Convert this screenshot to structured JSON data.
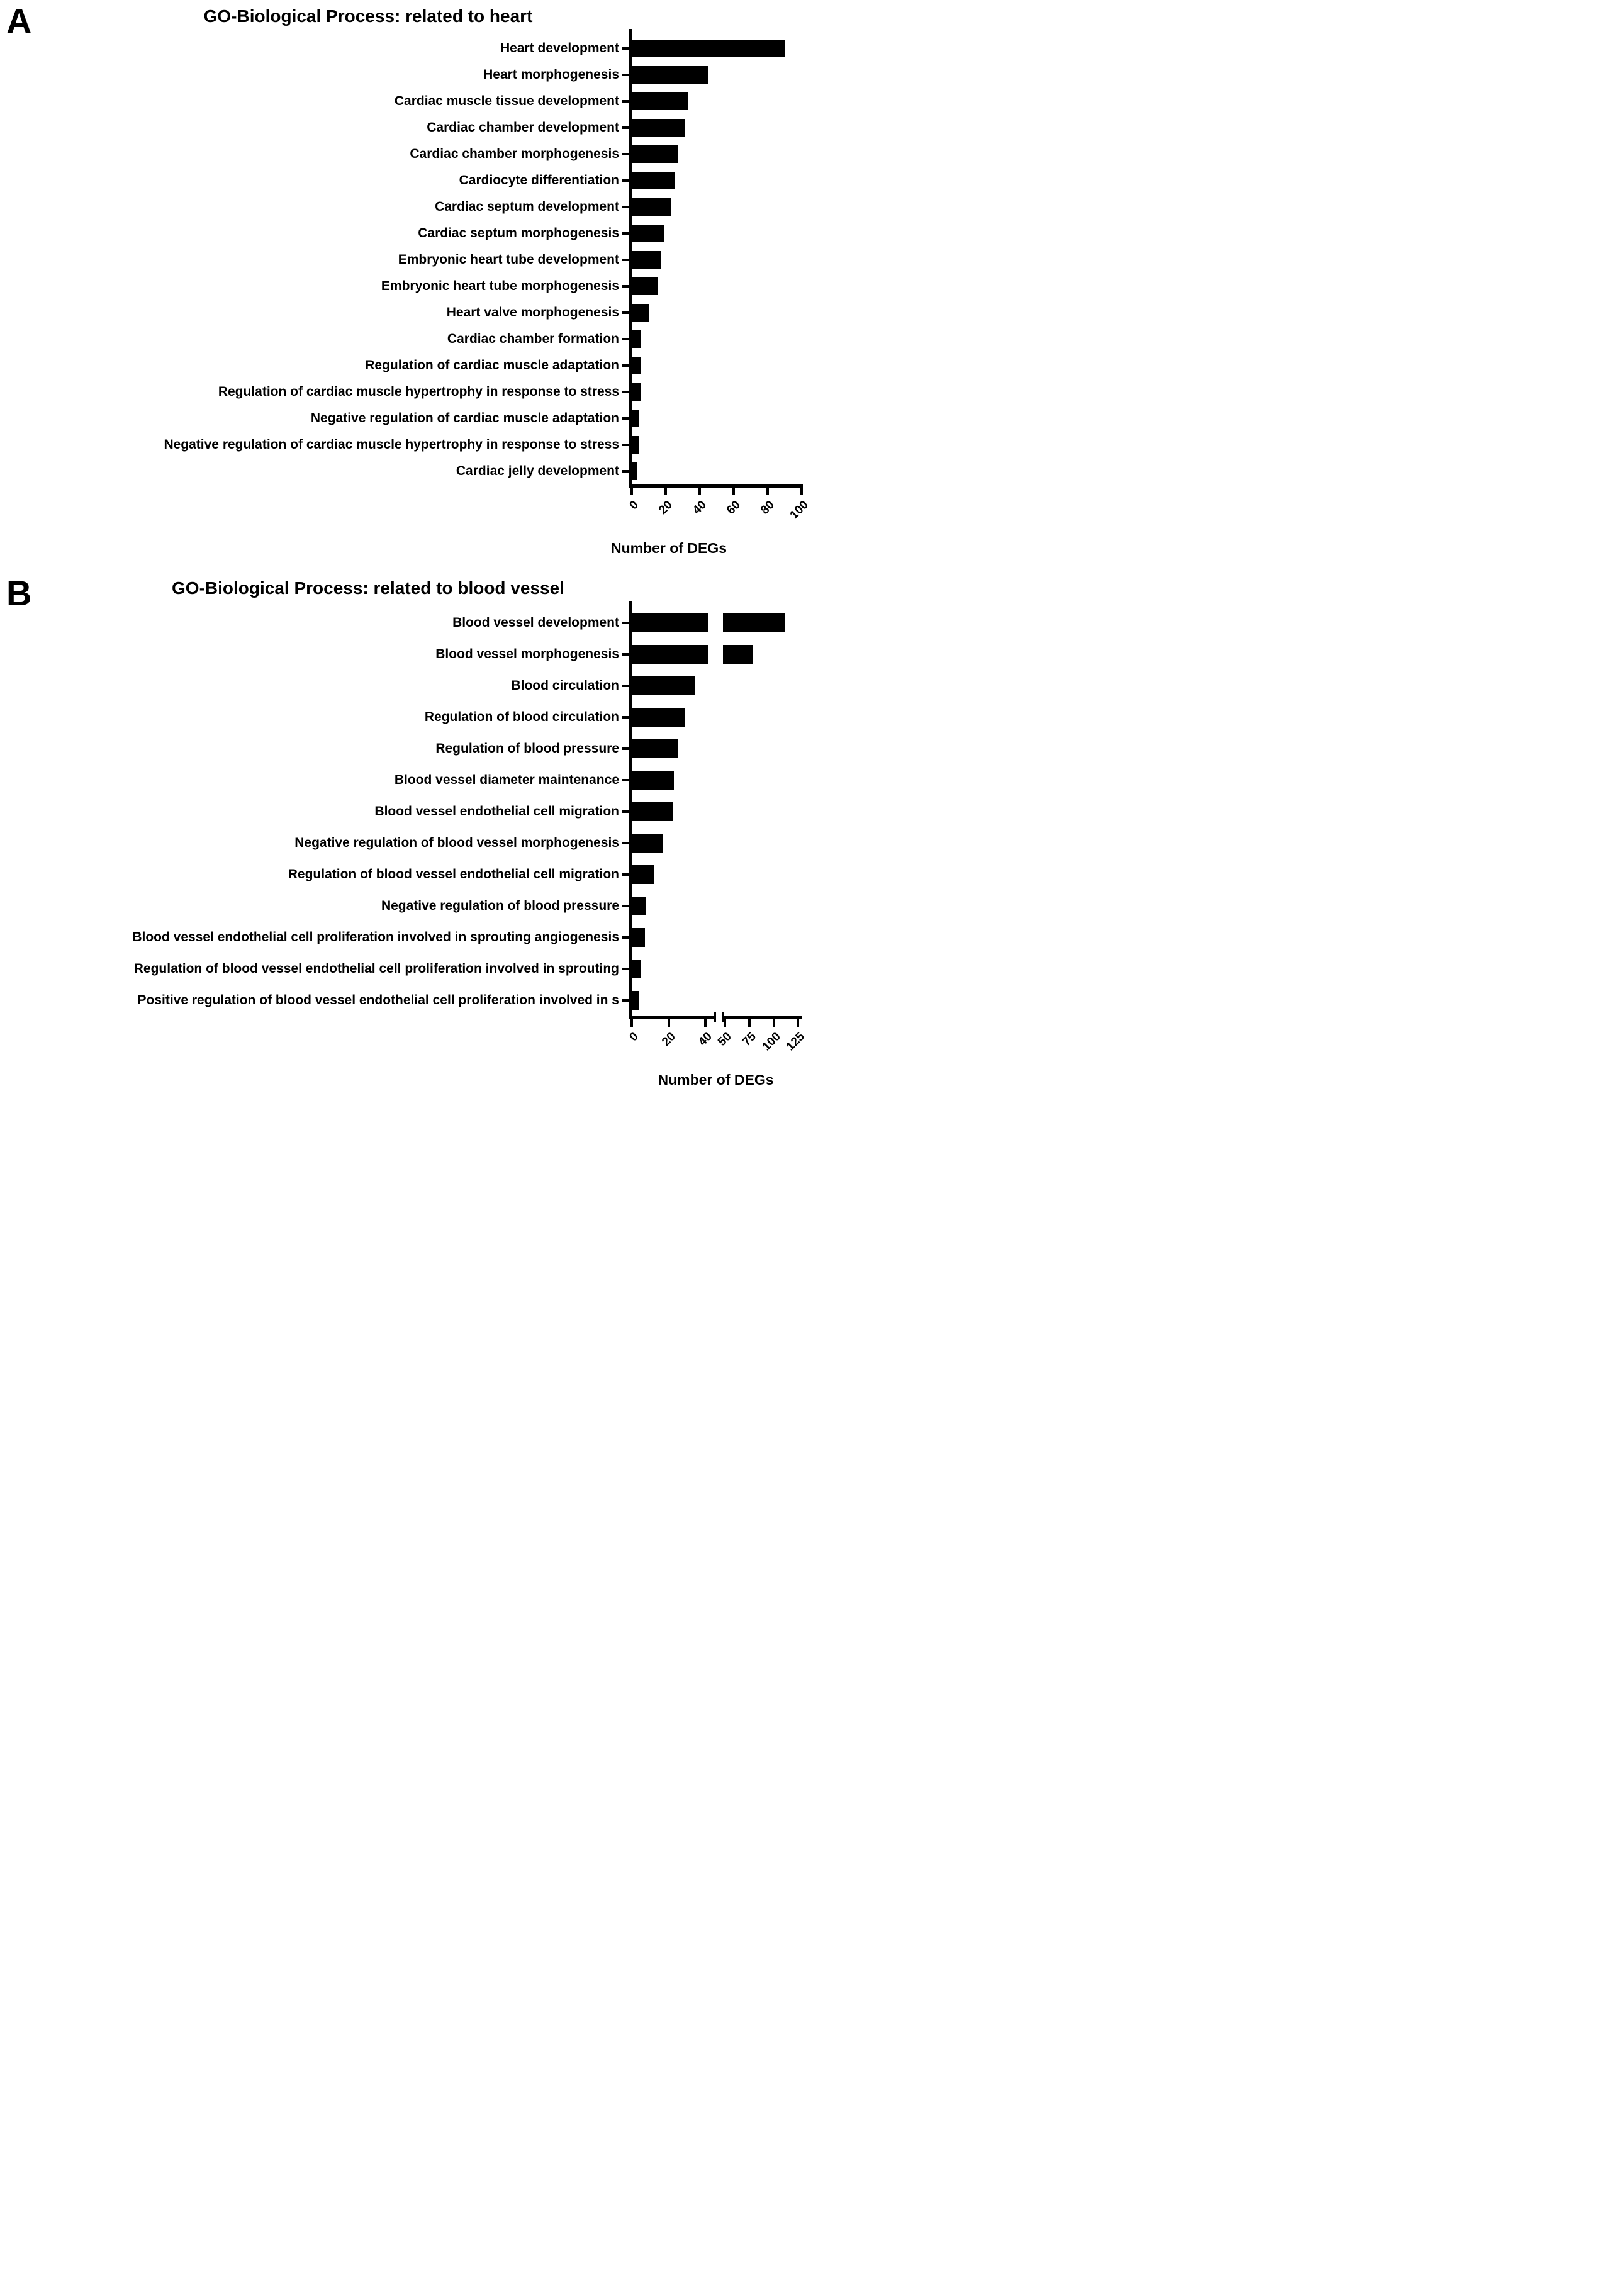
{
  "figure_background": "#ffffff",
  "bar_color": "#000000",
  "chart_data": [
    {
      "type": "bar",
      "horizontal": true,
      "panel_letter": "A",
      "title": "GO-Biological Process: related to heart",
      "xlabel": "Number of DEGs",
      "xlim": [
        0,
        103
      ],
      "x_ticks": [
        0,
        20,
        40,
        60,
        80,
        100
      ],
      "grid": false,
      "legend": false,
      "categories": [
        "Heart development",
        "Heart morphogenesis",
        "Cardiac muscle tissue development",
        "Cardiac chamber development",
        "Cardiac chamber morphogenesis",
        "Cardiocyte differentiation",
        "Cardiac septum development",
        "Cardiac septum morphogenesis",
        "Embryonic heart tube development",
        "Embryonic heart tube morphogenesis",
        "Heart valve morphogenesis",
        "Cardiac chamber formation",
        "Regulation of cardiac muscle adaptation",
        "Regulation of cardiac muscle hypertrophy in response to stress",
        "Negative regulation of cardiac muscle adaptation",
        "Negative regulation of cardiac muscle hypertrophy in response to stress",
        "Cardiac jelly development"
      ],
      "values": [
        90,
        45,
        33,
        31,
        27,
        25,
        23,
        19,
        17,
        15,
        10,
        5,
        5,
        5,
        4,
        4,
        3
      ]
    },
    {
      "type": "bar",
      "horizontal": true,
      "panel_letter": "B",
      "title": "GO-Biological Process: related to blood vessel",
      "xlabel": "Number of DEGs",
      "xlim_segment1": [
        0,
        45
      ],
      "xlim_segment2": [
        50,
        125
      ],
      "axis_break": {
        "after": 40,
        "resume_at": 50
      },
      "x_ticks_segment1": [
        0,
        20,
        40
      ],
      "x_ticks_segment2": [
        50,
        75,
        100,
        125
      ],
      "grid": false,
      "legend": false,
      "categories": [
        "Blood vessel development",
        "Blood vessel morphogenesis",
        "Blood circulation",
        "Regulation of blood circulation",
        "Regulation of blood pressure",
        "Blood vessel diameter maintenance",
        "Blood vessel endothelial cell migration",
        "Negative regulation of blood vessel morphogenesis",
        "Regulation of blood vessel endothelial cell migration",
        "Negative regulation of blood pressure",
        "Blood vessel endothelial cell proliferation involved in sprouting angiogenesis",
        "Regulation of blood vessel endothelial cell proliferation involved in sprouting",
        "Positive regulation of blood vessel endothelial cell proliferation involved in s"
      ],
      "values": [
        110,
        77,
        34,
        29,
        25,
        23,
        22,
        17,
        12,
        8,
        7,
        5,
        4
      ]
    }
  ]
}
